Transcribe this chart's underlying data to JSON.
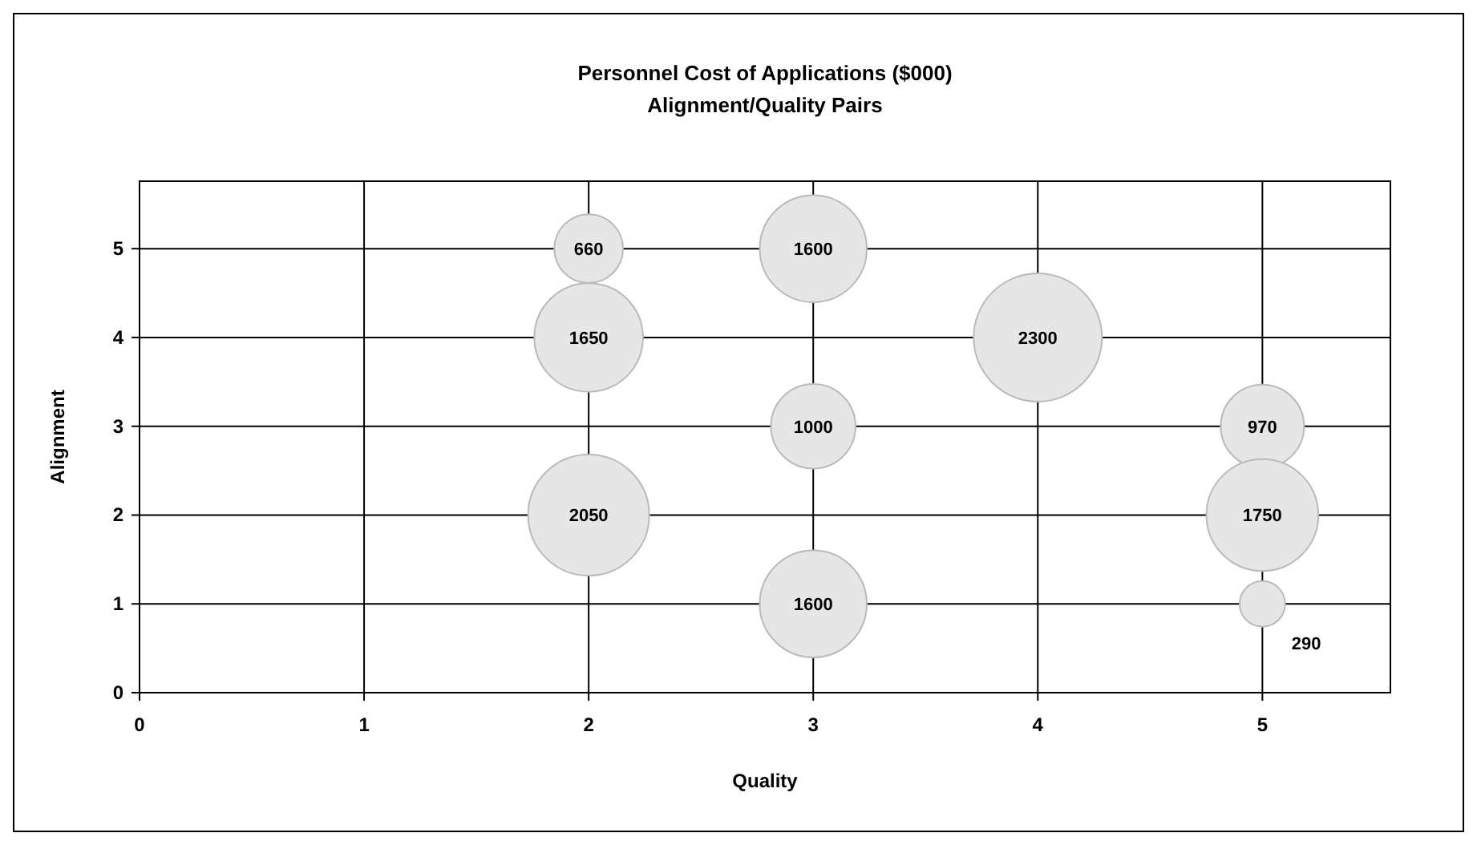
{
  "chart_data": {
    "type": "bubble",
    "title": "Personnel Cost of Applications ($000)",
    "subtitle": "Alignment/Quality Pairs",
    "xlabel": "Quality",
    "ylabel": "Alignment",
    "x": [
      2,
      2,
      2,
      3,
      3,
      3,
      4,
      5,
      5,
      5
    ],
    "values": [
      5,
      4,
      2,
      5,
      3,
      1,
      4,
      3,
      2,
      1
    ],
    "sizes": [
      0.287,
      0.717,
      0.891,
      0.696,
      0.435,
      0.696,
      1,
      0.422,
      0.761,
      0.126
    ],
    "annotations": [
      {
        "text": "660",
        "x": 2,
        "y": 5
      },
      {
        "text": "1650",
        "x": 2,
        "y": 4
      },
      {
        "text": "2050",
        "x": 2,
        "y": 2
      },
      {
        "text": "1600",
        "x": 3,
        "y": 5
      },
      {
        "text": "1000",
        "x": 3,
        "y": 3
      },
      {
        "text": "1600",
        "x": 3,
        "y": 1
      },
      {
        "text": "2300",
        "x": 4,
        "y": 4
      },
      {
        "text": "970",
        "x": 5,
        "y": 3
      },
      {
        "text": "1750",
        "x": 5,
        "y": 2
      },
      {
        "text": "290",
        "x": 5,
        "y": 1
      }
    ],
    "color": "#e6e6e6",
    "xlim": [
      0,
      5.57
    ],
    "xticks": [
      0,
      1,
      2,
      3,
      4,
      5
    ],
    "ylim": [
      0,
      5.76
    ],
    "yticks": [
      0,
      1,
      2,
      3,
      4,
      5
    ],
    "grid": true
  }
}
